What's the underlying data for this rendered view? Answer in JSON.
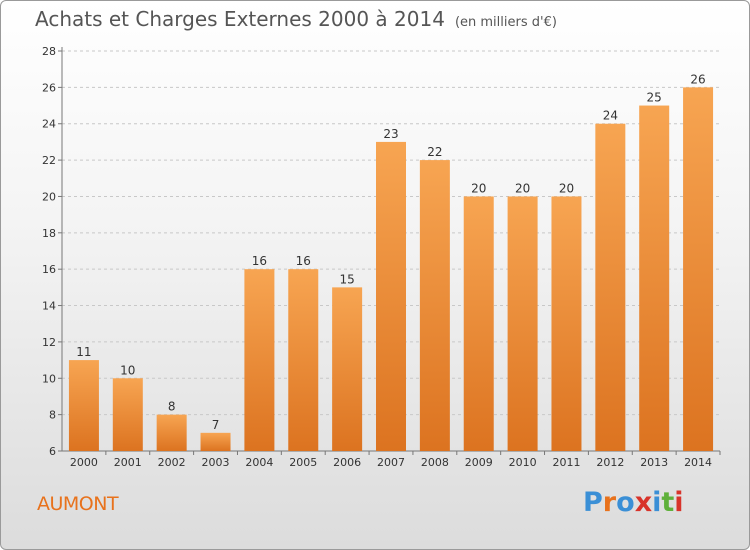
{
  "header": {
    "title": "Achats et Charges Externes 2000 à 2014",
    "unit": "(en milliers d'€)"
  },
  "footer": {
    "city": "AUMONT",
    "brand": "Proxiti",
    "brand_colors": [
      "#3a8fd6",
      "#e8721c",
      "#3a8fd6",
      "#d8332a",
      "#3a8fd6",
      "#5fb03a",
      "#d8332a"
    ]
  },
  "colors": {
    "bar_top": "#f7a552",
    "bar_bottom": "#dc7320",
    "label": "#333333",
    "grid": "#c8c8c8"
  },
  "chart_data": {
    "type": "bar",
    "title": "Achats et Charges Externes 2000 à 2014",
    "xlabel": "",
    "ylabel": "",
    "categories": [
      "2000",
      "2001",
      "2002",
      "2003",
      "2004",
      "2005",
      "2006",
      "2007",
      "2008",
      "2009",
      "2010",
      "2011",
      "2012",
      "2013",
      "2014"
    ],
    "values": [
      11,
      10,
      8,
      7,
      16,
      16,
      15,
      23,
      22,
      20,
      20,
      20,
      24,
      25,
      26
    ],
    "ylim": [
      6,
      28
    ],
    "yticks": [
      6,
      8,
      10,
      12,
      14,
      16,
      18,
      20,
      22,
      24,
      26,
      28
    ],
    "grid": true,
    "legend": "none"
  }
}
